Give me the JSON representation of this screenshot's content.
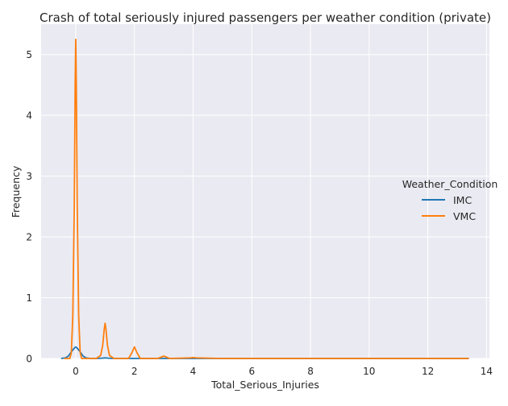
{
  "chart_data": {
    "type": "line",
    "title": "Crash of total seriously injured passengers per weather condition (private)",
    "xlabel": "Total_Serious_Injuries",
    "ylabel": "Frequency",
    "xlim": [
      -1.18,
      14.1
    ],
    "ylim": [
      0,
      5.5
    ],
    "x_ticks": [
      0,
      2,
      4,
      6,
      8,
      10,
      12,
      14
    ],
    "y_ticks": [
      0,
      1,
      2,
      3,
      4,
      5
    ],
    "grid": true,
    "legend": {
      "title": "Weather_Condition",
      "placement": "right"
    },
    "series": [
      {
        "name": "IMC",
        "color": "#1f77b4",
        "x": [
          -0.5,
          -0.35,
          -0.25,
          -0.15,
          -0.05,
          0.0,
          0.05,
          0.15,
          0.25,
          0.35,
          0.5,
          0.7,
          0.9,
          1.0,
          1.1,
          1.3,
          2,
          4,
          6,
          8,
          10,
          12,
          13.4
        ],
        "y": [
          0.0,
          0.01,
          0.04,
          0.11,
          0.17,
          0.19,
          0.17,
          0.11,
          0.04,
          0.01,
          0.0,
          0.0,
          0.005,
          0.01,
          0.005,
          0.0,
          0.0,
          0.0,
          0.0,
          0.0,
          0.0,
          0.0,
          0.0
        ]
      },
      {
        "name": "VMC",
        "color": "#ff7f0e",
        "x": [
          -0.4,
          -0.2,
          -0.15,
          -0.1,
          -0.05,
          -0.02,
          0.0,
          0.02,
          0.05,
          0.1,
          0.15,
          0.2,
          0.3,
          0.7,
          0.85,
          0.92,
          0.97,
          1.0,
          1.03,
          1.08,
          1.15,
          1.3,
          1.8,
          1.92,
          2.0,
          2.08,
          2.2,
          2.8,
          2.95,
          3.0,
          3.05,
          3.2,
          3.9,
          4.0,
          4.1,
          5,
          7,
          9,
          11,
          13.4
        ],
        "y": [
          0.0,
          0.0,
          0.1,
          0.7,
          2.5,
          4.5,
          5.25,
          4.5,
          2.5,
          0.7,
          0.1,
          0.0,
          0.0,
          0.0,
          0.05,
          0.22,
          0.48,
          0.58,
          0.48,
          0.22,
          0.05,
          0.0,
          0.0,
          0.1,
          0.19,
          0.1,
          0.0,
          0.0,
          0.03,
          0.04,
          0.03,
          0.0,
          0.01,
          0.015,
          0.01,
          0.0,
          0.0,
          0.0,
          0.0,
          0.0
        ]
      }
    ]
  }
}
